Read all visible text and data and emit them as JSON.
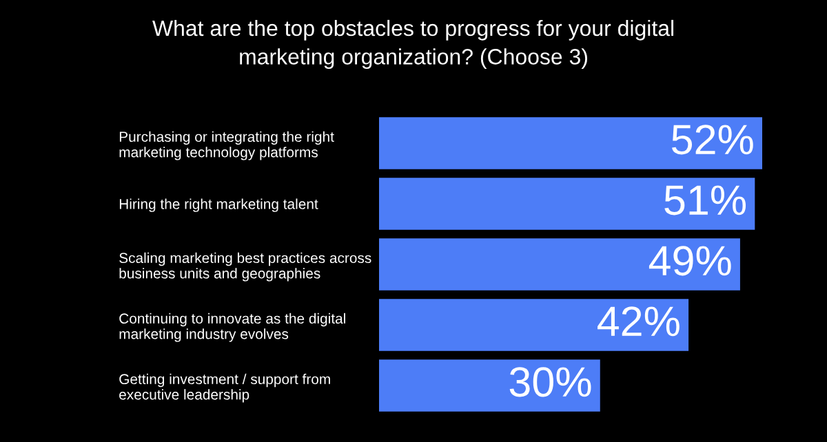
{
  "chart_data": {
    "type": "bar",
    "orientation": "horizontal",
    "title": "What are the top obstacles to progress for your digital\nmarketing organization? (Choose 3)",
    "categories": [
      "Purchasing or integrating the right\nmarketing technology platforms",
      "Hiring the right marketing talent",
      "Scaling marketing best practices across\nbusiness units and geographies",
      "Continuing to innovate as the digital\nmarketing industry evolves",
      "Getting investment / support from\nexecutive leadership"
    ],
    "values": [
      52,
      51,
      49,
      42,
      30
    ],
    "value_labels": [
      "52%",
      "51%",
      "49%",
      "42%",
      "30%"
    ],
    "color": "#4d7df7",
    "legend": false,
    "grid": false
  }
}
